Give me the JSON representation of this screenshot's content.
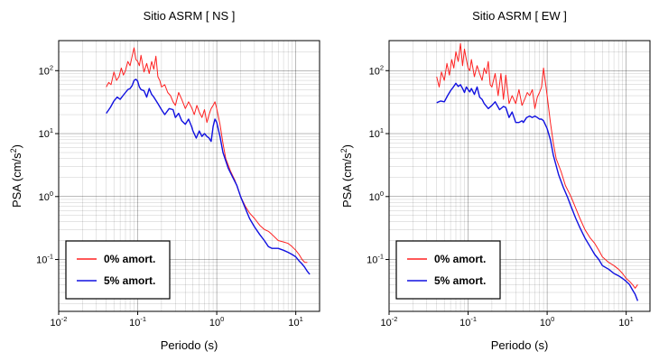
{
  "colors": {
    "undamped": "#ff2020",
    "damped": "#1010e0",
    "grid": "#000000",
    "frame": "#000000"
  },
  "chart_data": [
    {
      "type": "line",
      "title": "Sitio ASRM [ NS ]",
      "xlabel": "Periodo (s)",
      "ylabel_main": "PSA (cm/s",
      "ylabel_sup": "2",
      "ylabel_end": ")",
      "xscale": "log",
      "yscale": "log",
      "xlim": [
        0.01,
        20
      ],
      "ylim": [
        0.015,
        300
      ],
      "xticks": [
        {
          "base": "10",
          "exp": "-2"
        },
        {
          "base": "10",
          "exp": "-1"
        },
        {
          "base": "10",
          "exp": "0"
        },
        {
          "base": "10",
          "exp": "1"
        }
      ],
      "yticks": [
        {
          "base": "10",
          "exp": "-1"
        },
        {
          "base": "10",
          "exp": "0"
        },
        {
          "base": "10",
          "exp": "1"
        },
        {
          "base": "10",
          "exp": "2"
        }
      ],
      "grid": true,
      "legend_position": "bottom-left",
      "series": [
        {
          "name": "0% amort.",
          "color_key": "undamped",
          "x": [
            0.04,
            0.043,
            0.046,
            0.05,
            0.054,
            0.058,
            0.062,
            0.066,
            0.07,
            0.075,
            0.08,
            0.085,
            0.09,
            0.095,
            0.1,
            0.105,
            0.11,
            0.12,
            0.13,
            0.14,
            0.15,
            0.16,
            0.17,
            0.18,
            0.19,
            0.2,
            0.22,
            0.24,
            0.26,
            0.28,
            0.3,
            0.33,
            0.36,
            0.4,
            0.44,
            0.48,
            0.52,
            0.56,
            0.6,
            0.65,
            0.7,
            0.75,
            0.8,
            0.85,
            0.9,
            0.95,
            1.0,
            1.1,
            1.2,
            1.3,
            1.5,
            1.7,
            2.0,
            2.3,
            2.6,
            3.0,
            3.5,
            4.0,
            4.5,
            5.0,
            6.0,
            7.0,
            8.0,
            9.0,
            10.0,
            11.0,
            12.0,
            13.0,
            14.0
          ],
          "y": [
            55,
            65,
            60,
            95,
            70,
            80,
            110,
            85,
            100,
            140,
            120,
            170,
            230,
            150,
            140,
            120,
            175,
            95,
            130,
            90,
            140,
            105,
            170,
            80,
            70,
            55,
            60,
            45,
            40,
            32,
            28,
            45,
            35,
            25,
            32,
            26,
            20,
            28,
            22,
            18,
            24,
            15,
            20,
            25,
            28,
            32,
            25,
            14,
            7,
            4,
            2.5,
            1.8,
            1.0,
            0.7,
            0.55,
            0.45,
            0.35,
            0.3,
            0.28,
            0.25,
            0.2,
            0.19,
            0.18,
            0.16,
            0.14,
            0.12,
            0.1,
            0.09,
            0.09
          ]
        },
        {
          "name": "5% amort.",
          "color_key": "damped",
          "x": [
            0.04,
            0.045,
            0.05,
            0.055,
            0.06,
            0.065,
            0.07,
            0.075,
            0.08,
            0.085,
            0.09,
            0.095,
            0.1,
            0.105,
            0.11,
            0.12,
            0.13,
            0.14,
            0.15,
            0.16,
            0.18,
            0.2,
            0.22,
            0.25,
            0.28,
            0.3,
            0.33,
            0.36,
            0.4,
            0.44,
            0.48,
            0.5,
            0.55,
            0.6,
            0.65,
            0.7,
            0.75,
            0.8,
            0.85,
            0.9,
            0.95,
            1.0,
            1.1,
            1.2,
            1.4,
            1.6,
            1.8,
            2.0,
            2.3,
            2.6,
            3.0,
            3.5,
            4.0,
            4.5,
            5.0,
            6.0,
            7.0,
            8.0,
            9.0,
            10.0,
            11.0,
            12.0,
            13.0,
            14.0,
            15.0
          ],
          "y": [
            21,
            26,
            33,
            38,
            35,
            40,
            45,
            50,
            52,
            58,
            70,
            73,
            68,
            55,
            50,
            48,
            38,
            52,
            42,
            38,
            30,
            24,
            20,
            25,
            24,
            18,
            21,
            16,
            14,
            17,
            13,
            11,
            8.5,
            11,
            9,
            10,
            9,
            8.5,
            7.5,
            13,
            17,
            15,
            9,
            5,
            2.8,
            2.0,
            1.5,
            1.0,
            0.65,
            0.45,
            0.33,
            0.25,
            0.2,
            0.16,
            0.15,
            0.15,
            0.14,
            0.13,
            0.12,
            0.11,
            0.095,
            0.085,
            0.075,
            0.065,
            0.058
          ]
        }
      ]
    },
    {
      "type": "line",
      "title": "Sitio ASRM [ EW ]",
      "xlabel": "Periodo (s)",
      "ylabel_main": "PSA (cm/s",
      "ylabel_sup": "2",
      "ylabel_end": ")",
      "xscale": "log",
      "yscale": "log",
      "xlim": [
        0.01,
        20
      ],
      "ylim": [
        0.015,
        300
      ],
      "xticks": [
        {
          "base": "10",
          "exp": "-2"
        },
        {
          "base": "10",
          "exp": "-1"
        },
        {
          "base": "10",
          "exp": "0"
        },
        {
          "base": "10",
          "exp": "1"
        }
      ],
      "yticks": [
        {
          "base": "10",
          "exp": "-1"
        },
        {
          "base": "10",
          "exp": "0"
        },
        {
          "base": "10",
          "exp": "1"
        },
        {
          "base": "10",
          "exp": "2"
        }
      ],
      "grid": true,
      "legend_position": "bottom-left",
      "series": [
        {
          "name": "0% amort.",
          "color_key": "undamped",
          "x": [
            0.04,
            0.043,
            0.046,
            0.05,
            0.054,
            0.058,
            0.062,
            0.066,
            0.07,
            0.075,
            0.08,
            0.085,
            0.09,
            0.095,
            0.1,
            0.105,
            0.11,
            0.12,
            0.13,
            0.14,
            0.15,
            0.16,
            0.17,
            0.18,
            0.19,
            0.2,
            0.22,
            0.24,
            0.26,
            0.28,
            0.3,
            0.33,
            0.36,
            0.4,
            0.44,
            0.48,
            0.52,
            0.56,
            0.6,
            0.65,
            0.7,
            0.75,
            0.8,
            0.85,
            0.9,
            1.0,
            1.1,
            1.2,
            1.3,
            1.5,
            1.7,
            2.0,
            2.3,
            2.6,
            3.0,
            3.5,
            4.0,
            4.5,
            5.0,
            6.0,
            7.0,
            8.0,
            9.0,
            10.0,
            11.0,
            12.0,
            13.0,
            14.0
          ],
          "y": [
            80,
            55,
            95,
            70,
            130,
            85,
            150,
            110,
            200,
            140,
            270,
            120,
            220,
            150,
            110,
            100,
            150,
            80,
            120,
            90,
            70,
            110,
            90,
            140,
            60,
            55,
            90,
            40,
            90,
            35,
            85,
            30,
            40,
            30,
            50,
            28,
            35,
            45,
            40,
            50,
            25,
            38,
            45,
            55,
            110,
            40,
            15,
            7,
            4,
            2.5,
            1.5,
            1.0,
            0.65,
            0.45,
            0.3,
            0.22,
            0.18,
            0.14,
            0.11,
            0.09,
            0.08,
            0.07,
            0.06,
            0.05,
            0.045,
            0.04,
            0.035,
            0.04
          ]
        },
        {
          "name": "5% amort.",
          "color_key": "damped",
          "x": [
            0.04,
            0.045,
            0.05,
            0.055,
            0.06,
            0.065,
            0.07,
            0.075,
            0.08,
            0.085,
            0.09,
            0.095,
            0.1,
            0.105,
            0.11,
            0.12,
            0.13,
            0.14,
            0.15,
            0.16,
            0.18,
            0.2,
            0.22,
            0.25,
            0.28,
            0.3,
            0.33,
            0.36,
            0.4,
            0.44,
            0.48,
            0.5,
            0.55,
            0.6,
            0.65,
            0.7,
            0.75,
            0.8,
            0.85,
            0.9,
            1.0,
            1.1,
            1.2,
            1.4,
            1.6,
            1.8,
            2.0,
            2.3,
            2.6,
            3.0,
            3.5,
            4.0,
            4.5,
            5.0,
            6.0,
            7.0,
            8.0,
            9.0,
            10.0,
            11.0,
            12.0,
            13.0,
            14.0
          ],
          "y": [
            31,
            33,
            32,
            40,
            48,
            55,
            63,
            56,
            60,
            52,
            45,
            55,
            50,
            46,
            52,
            42,
            55,
            38,
            35,
            30,
            25,
            28,
            32,
            24,
            27,
            26,
            18,
            22,
            15,
            15,
            16,
            15,
            18,
            19,
            18,
            19,
            18,
            17,
            17,
            16,
            12,
            8,
            4.5,
            2.2,
            1.4,
            1.0,
            0.7,
            0.45,
            0.32,
            0.22,
            0.16,
            0.12,
            0.1,
            0.08,
            0.07,
            0.06,
            0.055,
            0.05,
            0.045,
            0.04,
            0.033,
            0.028,
            0.022
          ]
        }
      ]
    }
  ]
}
